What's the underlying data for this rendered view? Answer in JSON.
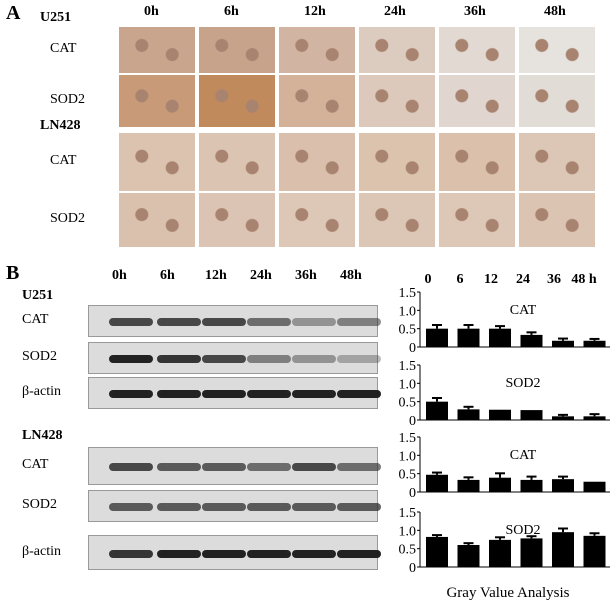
{
  "panel_a": {
    "label": "A",
    "timepoints": [
      "0h",
      "6h",
      "12h",
      "24h",
      "36h",
      "48h"
    ],
    "groups": [
      {
        "cell_line": "U251",
        "rows": [
          "CAT",
          "SOD2"
        ]
      },
      {
        "cell_line": "LN428",
        "rows": [
          "CAT",
          "SOD2"
        ]
      }
    ]
  },
  "panel_b": {
    "label": "B",
    "timepoints": [
      "0h",
      "6h",
      "12h",
      "24h",
      "36h",
      "48h"
    ],
    "groups": [
      {
        "cell_line": "U251",
        "rows": [
          "CAT",
          "SOD2",
          "β-actin"
        ]
      },
      {
        "cell_line": "LN428",
        "rows": [
          "CAT",
          "SOD2",
          "β-actin"
        ]
      }
    ],
    "chart_header": [
      "0",
      "6",
      "12",
      "24",
      "36",
      "48 h"
    ],
    "xlabel": "Gray Value Analysis"
  },
  "chart_data": [
    {
      "type": "bar",
      "title": "CAT",
      "group": "U251",
      "categories": [
        "0",
        "6",
        "12",
        "24",
        "36",
        "48 h"
      ],
      "values": [
        0.5,
        0.5,
        0.5,
        0.33,
        0.17,
        0.17
      ],
      "errors": [
        0.1,
        0.1,
        0.07,
        0.07,
        0.06,
        0.05
      ],
      "ylim": [
        0,
        1.5
      ],
      "yticks": [
        "0",
        "0.5",
        "1.0",
        "1.5"
      ],
      "color": "#000000"
    },
    {
      "type": "bar",
      "title": "SOD2",
      "group": "U251",
      "categories": [
        "0",
        "6",
        "12",
        "24",
        "36",
        "48 h"
      ],
      "values": [
        0.5,
        0.29,
        0.28,
        0.27,
        0.1,
        0.1
      ],
      "errors": [
        0.1,
        0.07,
        0,
        0,
        0.04,
        0.06
      ],
      "ylim": [
        0,
        1.5
      ],
      "yticks": [
        "0",
        "0.5",
        "1.0",
        "1.5"
      ],
      "color": "#000000"
    },
    {
      "type": "bar",
      "title": "CAT",
      "group": "LN428",
      "categories": [
        "0",
        "6",
        "12",
        "24",
        "36",
        "48 h"
      ],
      "values": [
        0.47,
        0.33,
        0.39,
        0.33,
        0.35,
        0.28
      ],
      "errors": [
        0.06,
        0.07,
        0.12,
        0.09,
        0.07,
        0
      ],
      "ylim": [
        0,
        1.5
      ],
      "yticks": [
        "0",
        "0.5",
        "1.0",
        "1.5"
      ],
      "color": "#000000"
    },
    {
      "type": "bar",
      "title": "SOD2",
      "group": "LN428",
      "categories": [
        "0",
        "6",
        "12",
        "24",
        "36",
        "48 h"
      ],
      "values": [
        0.82,
        0.6,
        0.74,
        0.78,
        0.95,
        0.85
      ],
      "errors": [
        0.05,
        0.05,
        0.07,
        0.06,
        0.1,
        0.07
      ],
      "ylim": [
        0,
        1.5
      ],
      "yticks": [
        "0",
        "0.5",
        "1.0",
        "1.5"
      ],
      "color": "#000000"
    }
  ]
}
